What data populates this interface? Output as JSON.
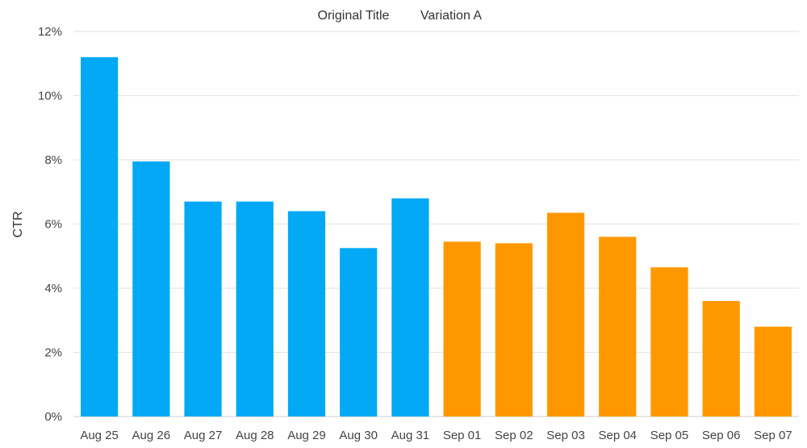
{
  "chart_data": {
    "type": "bar",
    "title": "",
    "xlabel": "",
    "ylabel": "CTR",
    "ylim": [
      0,
      12
    ],
    "y_ticks": [
      "0%",
      "2%",
      "4%",
      "6%",
      "8%",
      "10%",
      "12%"
    ],
    "y_tick_values": [
      0,
      2,
      4,
      6,
      8,
      10,
      12
    ],
    "grid": true,
    "legend_position": "top-center",
    "categories": [
      "Aug 25",
      "Aug 26",
      "Aug 27",
      "Aug 28",
      "Aug 29",
      "Aug 30",
      "Aug 31",
      "Sep 01",
      "Sep 02",
      "Sep 03",
      "Sep 04",
      "Sep 05",
      "Sep 06",
      "Sep 07"
    ],
    "series": [
      {
        "name": "Original Title",
        "color": "#03a9f4",
        "values": [
          11.2,
          7.95,
          6.7,
          6.7,
          6.4,
          5.25,
          6.8,
          null,
          null,
          null,
          null,
          null,
          null,
          null
        ]
      },
      {
        "name": "Variation A",
        "color": "#ff9800",
        "values": [
          null,
          null,
          null,
          null,
          null,
          null,
          null,
          5.45,
          5.4,
          6.35,
          5.6,
          4.65,
          3.6,
          2.8
        ]
      }
    ]
  }
}
